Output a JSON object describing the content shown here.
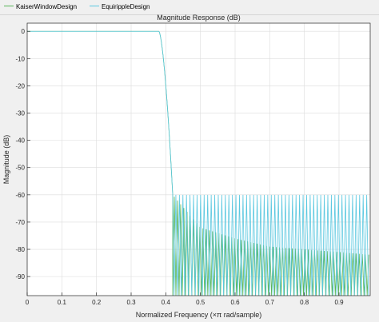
{
  "legend": {
    "items": [
      {
        "label": "KaiserWindowDesign",
        "color": "#59b559"
      },
      {
        "label": "EquirippleDesign",
        "color": "#5bc8e0"
      }
    ]
  },
  "chart_data": {
    "type": "line",
    "title": "Magnitude Response (dB)",
    "xlabel": "Normalized Frequency (×π rad/sample)",
    "ylabel": "Magnitude (dB)",
    "xlim": [
      0,
      0.99
    ],
    "ylim": [
      -97,
      3
    ],
    "xticks": [
      0,
      0.1,
      0.2,
      0.3,
      0.4,
      0.5,
      0.6,
      0.7,
      0.8,
      0.9
    ],
    "xtick_labels": [
      "0",
      "0.1",
      "0.2",
      "0.3",
      "0.4",
      "0.5",
      "0.6",
      "0.7",
      "0.8",
      "0.9"
    ],
    "yticks": [
      0,
      -10,
      -20,
      -30,
      -40,
      -50,
      -60,
      -70,
      -80,
      -90
    ],
    "ytick_labels": [
      "0",
      "-10",
      "-20",
      "-30",
      "-40",
      "-50",
      "-60",
      "-70",
      "-80",
      "-90"
    ],
    "grid": true,
    "legend_position": "top-left",
    "series": [
      {
        "name": "KaiserWindowDesign",
        "color": "#59b559",
        "passband_edge": 0.38,
        "stopband_edge": 0.42,
        "passband_level_db": 0,
        "stopband_ripple_peak_db": [
          [
            0.42,
            -60
          ],
          [
            0.5,
            -72
          ],
          [
            0.6,
            -76
          ],
          [
            0.7,
            -79
          ],
          [
            0.8,
            -80
          ],
          [
            0.9,
            -81
          ],
          [
            0.99,
            -82
          ]
        ],
        "stopband_null_db": -97
      },
      {
        "name": "EquirippleDesign",
        "color": "#5bc8e0",
        "passband_edge": 0.38,
        "stopband_edge": 0.42,
        "passband_level_db": 0,
        "stopband_ripple_peak_db": [
          [
            0.42,
            -60
          ],
          [
            0.99,
            -60
          ]
        ],
        "stopband_null_db": -97
      }
    ]
  }
}
